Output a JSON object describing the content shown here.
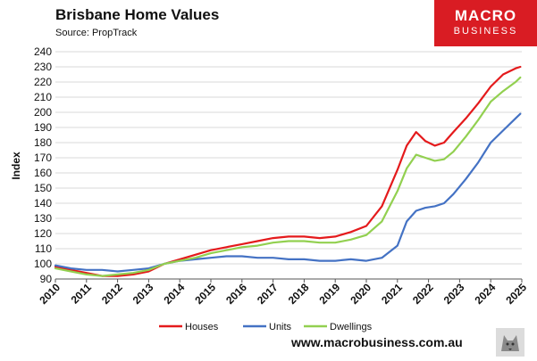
{
  "header": {
    "title": "Brisbane Home Values",
    "source": "Source: PropTrack"
  },
  "logo": {
    "line1": "MACRO",
    "line2": "BUSINESS",
    "color": "#d91c23"
  },
  "footer": {
    "url": "www.macrobusiness.com.au"
  },
  "icons": {
    "footer_logo": "wolf-icon"
  },
  "chart_data": {
    "type": "line",
    "title": "Brisbane Home Values",
    "xlabel": "",
    "ylabel": "Index",
    "xlim": [
      2010,
      2025
    ],
    "ylim": [
      90,
      240
    ],
    "xticks": [
      "2010",
      "2011",
      "2012",
      "2013",
      "2014",
      "2015",
      "2016",
      "2017",
      "2018",
      "2019",
      "2020",
      "2021",
      "2022",
      "2023",
      "2024",
      "2025"
    ],
    "yticks": [
      "90",
      "100",
      "110",
      "120",
      "130",
      "140",
      "150",
      "160",
      "170",
      "180",
      "190",
      "200",
      "210",
      "220",
      "230",
      "240"
    ],
    "grid": "horizontal",
    "legend_position": "bottom",
    "series": [
      {
        "name": "Houses",
        "color": "#e41a1c",
        "x": [
          2010,
          2010.5,
          2011,
          2011.5,
          2012,
          2012.5,
          2013,
          2013.5,
          2014,
          2014.5,
          2015,
          2015.5,
          2016,
          2016.5,
          2017,
          2017.5,
          2018,
          2018.5,
          2019,
          2019.5,
          2020,
          2020.5,
          2021,
          2021.3,
          2021.6,
          2021.9,
          2022.2,
          2022.5,
          2022.8,
          2023.2,
          2023.6,
          2024,
          2024.4,
          2024.8,
          2024.95
        ],
        "values": [
          98,
          96,
          94,
          92,
          92,
          93,
          95,
          100,
          103,
          106,
          109,
          111,
          113,
          115,
          117,
          118,
          118,
          117,
          118,
          121,
          125,
          138,
          162,
          178,
          187,
          181,
          178,
          180,
          187,
          196,
          206,
          217,
          225,
          229,
          230
        ]
      },
      {
        "name": "Units",
        "color": "#4472c4",
        "x": [
          2010,
          2010.5,
          2011,
          2011.5,
          2012,
          2012.5,
          2013,
          2013.5,
          2014,
          2014.5,
          2015,
          2015.5,
          2016,
          2016.5,
          2017,
          2017.5,
          2018,
          2018.5,
          2019,
          2019.5,
          2020,
          2020.5,
          2021,
          2021.3,
          2021.6,
          2021.9,
          2022.2,
          2022.5,
          2022.8,
          2023.2,
          2023.6,
          2024,
          2024.4,
          2024.8,
          2024.95
        ],
        "values": [
          99,
          97,
          96,
          96,
          95,
          96,
          97,
          100,
          102,
          103,
          104,
          105,
          105,
          104,
          104,
          103,
          103,
          102,
          102,
          103,
          102,
          104,
          112,
          128,
          135,
          137,
          138,
          140,
          146,
          156,
          167,
          180,
          188,
          196,
          199
        ]
      },
      {
        "name": "Dwellings",
        "color": "#92d050",
        "x": [
          2010,
          2010.5,
          2011,
          2011.5,
          2012,
          2012.5,
          2013,
          2013.5,
          2014,
          2014.5,
          2015,
          2015.5,
          2016,
          2016.5,
          2017,
          2017.5,
          2018,
          2018.5,
          2019,
          2019.5,
          2020,
          2020.5,
          2021,
          2021.3,
          2021.6,
          2021.9,
          2022.2,
          2022.5,
          2022.8,
          2023.2,
          2023.6,
          2024,
          2024.4,
          2024.8,
          2024.95
        ],
        "values": [
          97,
          95,
          93,
          92,
          93,
          94,
          96,
          100,
          102,
          104,
          107,
          109,
          111,
          112,
          114,
          115,
          115,
          114,
          114,
          116,
          119,
          128,
          148,
          163,
          172,
          170,
          168,
          169,
          174,
          184,
          195,
          207,
          214,
          220,
          223
        ]
      }
    ]
  }
}
